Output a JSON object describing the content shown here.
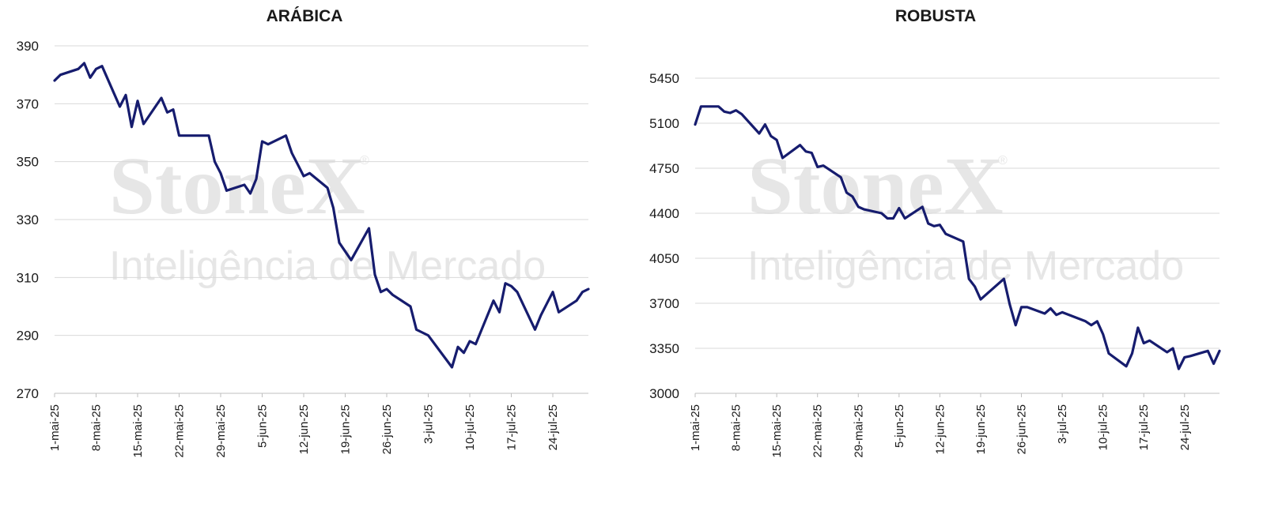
{
  "colors": {
    "line": "#161c6e",
    "grid": "#d9d9d9",
    "axis": "#bfbfbf",
    "watermark": "#e6e6e6"
  },
  "watermark": {
    "brand": "StoneX",
    "registered": "®",
    "tagline": "Inteligência de Mercado"
  },
  "chart_data": [
    {
      "type": "line",
      "title": "ARÁBICA",
      "xlabel": "",
      "ylabel": "",
      "ylim": [
        270,
        390
      ],
      "yticks": [
        270,
        290,
        310,
        330,
        350,
        370,
        390
      ],
      "grid": true,
      "xticks": [
        "1-mai-25",
        "8-mai-25",
        "15-mai-25",
        "22-mai-25",
        "29-mai-25",
        "5-jun-25",
        "12-jun-25",
        "19-jun-25",
        "26-jun-25",
        "3-jul-25",
        "10-jul-25",
        "17-jul-25",
        "24-jul-25"
      ],
      "x_range": [
        "2025-05-01",
        "2025-07-30"
      ],
      "series": [
        {
          "x": [
            "2025-05-01",
            "2025-05-02",
            "2025-05-05",
            "2025-05-06",
            "2025-05-07",
            "2025-05-08",
            "2025-05-09",
            "2025-05-12",
            "2025-05-13",
            "2025-05-14",
            "2025-05-15",
            "2025-05-16",
            "2025-05-19",
            "2025-05-20",
            "2025-05-21",
            "2025-05-22",
            "2025-05-27",
            "2025-05-28",
            "2025-05-29",
            "2025-05-30",
            "2025-06-02",
            "2025-06-03",
            "2025-06-04",
            "2025-06-05",
            "2025-06-06",
            "2025-06-09",
            "2025-06-10",
            "2025-06-11",
            "2025-06-12",
            "2025-06-13",
            "2025-06-16",
            "2025-06-17",
            "2025-06-18",
            "2025-06-19",
            "2025-06-20",
            "2025-06-23",
            "2025-06-24",
            "2025-06-25",
            "2025-06-26",
            "2025-06-27",
            "2025-06-30",
            "2025-07-01",
            "2025-07-02",
            "2025-07-03",
            "2025-07-07",
            "2025-07-08",
            "2025-07-09",
            "2025-07-10",
            "2025-07-11",
            "2025-07-14",
            "2025-07-15",
            "2025-07-16",
            "2025-07-17",
            "2025-07-18",
            "2025-07-21",
            "2025-07-22",
            "2025-07-23",
            "2025-07-24",
            "2025-07-25",
            "2025-07-28",
            "2025-07-29",
            "2025-07-30"
          ],
          "values": [
            378,
            380,
            382,
            384,
            379,
            382,
            383,
            369,
            373,
            362,
            371,
            363,
            372,
            367,
            368,
            359,
            359,
            350,
            346,
            340,
            342,
            339,
            344,
            357,
            356,
            359,
            353,
            349,
            345,
            346,
            341,
            334,
            322,
            319,
            316,
            327,
            311,
            305,
            306,
            304,
            300,
            292,
            291,
            290,
            279,
            286,
            284,
            288,
            287,
            302,
            298,
            308,
            307,
            305,
            292,
            297,
            301,
            305,
            298,
            302,
            305,
            306
          ]
        }
      ]
    },
    {
      "type": "line",
      "title": "ROBUSTA",
      "xlabel": "",
      "ylabel": "",
      "ylim": [
        3000,
        5450
      ],
      "yticks": [
        3000,
        3350,
        3700,
        4050,
        4400,
        4750,
        5100,
        5450
      ],
      "grid": true,
      "xticks": [
        "1-mai-25",
        "8-mai-25",
        "15-mai-25",
        "22-mai-25",
        "29-mai-25",
        "5-jun-25",
        "12-jun-25",
        "19-jun-25",
        "26-jun-25",
        "3-jul-25",
        "10-jul-25",
        "17-jul-25",
        "24-jul-25"
      ],
      "x_range": [
        "2025-05-01",
        "2025-07-30"
      ],
      "series": [
        {
          "x": [
            "2025-05-01",
            "2025-05-02",
            "2025-05-05",
            "2025-05-06",
            "2025-05-07",
            "2025-05-08",
            "2025-05-09",
            "2025-05-12",
            "2025-05-13",
            "2025-05-14",
            "2025-05-15",
            "2025-05-16",
            "2025-05-19",
            "2025-05-20",
            "2025-05-21",
            "2025-05-22",
            "2025-05-23",
            "2025-05-26",
            "2025-05-27",
            "2025-05-28",
            "2025-05-29",
            "2025-05-30",
            "2025-06-02",
            "2025-06-03",
            "2025-06-04",
            "2025-06-05",
            "2025-06-06",
            "2025-06-09",
            "2025-06-10",
            "2025-06-11",
            "2025-06-12",
            "2025-06-13",
            "2025-06-16",
            "2025-06-17",
            "2025-06-18",
            "2025-06-19",
            "2025-06-20",
            "2025-06-23",
            "2025-06-24",
            "2025-06-25",
            "2025-06-26",
            "2025-06-27",
            "2025-06-30",
            "2025-07-01",
            "2025-07-02",
            "2025-07-03",
            "2025-07-07",
            "2025-07-08",
            "2025-07-09",
            "2025-07-10",
            "2025-07-11",
            "2025-07-14",
            "2025-07-15",
            "2025-07-16",
            "2025-07-17",
            "2025-07-18",
            "2025-07-21",
            "2025-07-22",
            "2025-07-23",
            "2025-07-24",
            "2025-07-25",
            "2025-07-28",
            "2025-07-29",
            "2025-07-30"
          ],
          "values": [
            5090,
            5230,
            5230,
            5190,
            5180,
            5200,
            5170,
            5020,
            5090,
            5000,
            4970,
            4830,
            4930,
            4880,
            4870,
            4760,
            4770,
            4680,
            4560,
            4530,
            4450,
            4430,
            4400,
            4360,
            4360,
            4440,
            4360,
            4450,
            4320,
            4300,
            4310,
            4240,
            4180,
            3890,
            3830,
            3730,
            3770,
            3890,
            3690,
            3530,
            3670,
            3670,
            3620,
            3660,
            3610,
            3630,
            3560,
            3530,
            3560,
            3460,
            3310,
            3210,
            3310,
            3510,
            3390,
            3410,
            3320,
            3350,
            3190,
            3280,
            3290,
            3330,
            3230,
            3330
          ]
        }
      ]
    }
  ]
}
